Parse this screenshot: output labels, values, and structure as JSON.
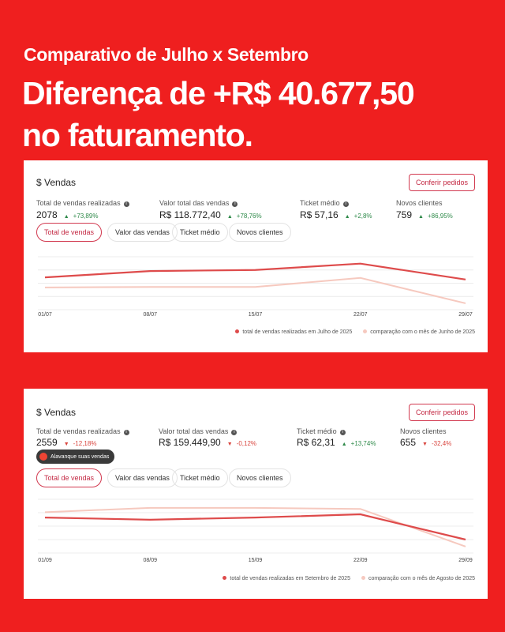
{
  "header": {
    "subtitle": "Comparativo de Julho x Setembro",
    "title_lines": [
      "Diferença de +R$ 40.677,50",
      "no faturamento."
    ]
  },
  "cards": [
    {
      "title": "$ Vendas",
      "button": "Conferir pedidos",
      "metrics": [
        {
          "label": "Total de vendas realizadas",
          "info": true,
          "value": "2078",
          "change": "+73,89%",
          "trend": "up"
        },
        {
          "label": "Valor total das vendas",
          "info": true,
          "value": "R$ 118.772,40",
          "change": "+78,76%",
          "trend": "up"
        },
        {
          "label": "Ticket médio",
          "info": true,
          "value": "R$ 57,16",
          "change": "+2,8%",
          "trend": "up"
        },
        {
          "label": "Novos clientes",
          "info": false,
          "value": "759",
          "change": "+86,95%",
          "trend": "up"
        }
      ],
      "tabs": [
        "Total de vendas",
        "Valor das vendas",
        "Ticket médio",
        "Novos clientes"
      ],
      "active_tab": 0,
      "chart": {
        "type": "line",
        "x": [
          "01/07",
          "08/07",
          "15/07",
          "22/07",
          "29/07"
        ],
        "ylim": [
          0,
          100
        ],
        "series": [
          {
            "name": "total de vendas realizadas em Julho de 2025",
            "color": "#de4b4b",
            "values": [
              61,
              73,
              75,
              87,
              57
            ]
          },
          {
            "name": "comparação com o mês de Junho de 2025",
            "color": "#f6c9bf",
            "values": [
              42,
              43,
              43,
              60,
              12
            ]
          }
        ]
      }
    },
    {
      "title": "$ Vendas",
      "button": "Conferir pedidos",
      "metrics": [
        {
          "label": "Total de vendas realizadas",
          "info": true,
          "value": "2559",
          "change": "-12,18%",
          "trend": "down"
        },
        {
          "label": "Valor total das vendas",
          "info": true,
          "value": "R$ 159.449,90",
          "change": "-0,12%",
          "trend": "down"
        },
        {
          "label": "Ticket médio",
          "info": true,
          "value": "R$ 62,31",
          "change": "+13,74%",
          "trend": "up"
        },
        {
          "label": "Novos clientes",
          "info": false,
          "value": "655",
          "change": "-32,4%",
          "trend": "down"
        }
      ],
      "badge": "Alavanque suas vendas",
      "tabs": [
        "Total de vendas",
        "Valor das vendas",
        "Ticket médio",
        "Novos clientes"
      ],
      "active_tab": 0,
      "chart": {
        "type": "line",
        "x": [
          "01/09",
          "08/09",
          "15/09",
          "22/09",
          "29/09"
        ],
        "ylim": [
          0,
          100
        ],
        "series": [
          {
            "name": "total de vendas realizadas em Setembro de 2025",
            "color": "#de4b4b",
            "values": [
              66,
              62,
              66,
              72,
              25
            ]
          },
          {
            "name": "comparação com o mês de Agosto de 2025",
            "color": "#f6c9bf",
            "values": [
              76,
              84,
              84,
              82,
              12
            ]
          }
        ]
      }
    }
  ]
}
